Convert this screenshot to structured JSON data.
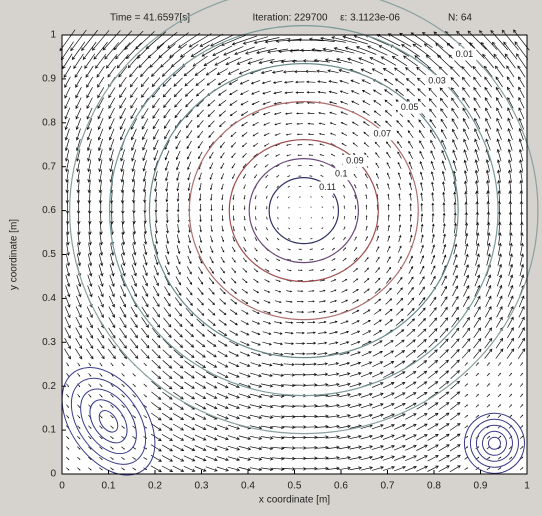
{
  "chart_data": {
    "type": "quiver-contour",
    "title_parts": [
      "Time = 41.6597[s]",
      "Iteration: 229700",
      "ε: 3.1123e-06",
      "N: 64"
    ],
    "x_label": "x coordinate [m]",
    "y_label": "y coordinate [m]",
    "xlim": [
      0,
      1
    ],
    "ylim": [
      0,
      1
    ],
    "xticks": [
      0,
      0.1,
      0.2,
      0.3,
      0.4,
      0.5,
      0.6,
      0.7,
      0.8,
      0.9,
      1
    ],
    "yticks": [
      0,
      0.1,
      0.2,
      0.3,
      0.4,
      0.5,
      0.6,
      0.7,
      0.8,
      0.9,
      1
    ],
    "contour_levels": [
      0.11,
      0.1,
      0.09,
      0.07,
      0.05,
      0.03,
      0.01
    ],
    "contour_colors": [
      "#333366",
      "#6a4a7a",
      "#a05050",
      "#b07070",
      "#6a8a8a",
      "#7a9a9a",
      "#8aa0a0"
    ],
    "arrow_color": "#111111",
    "frame_color": "#000000"
  }
}
